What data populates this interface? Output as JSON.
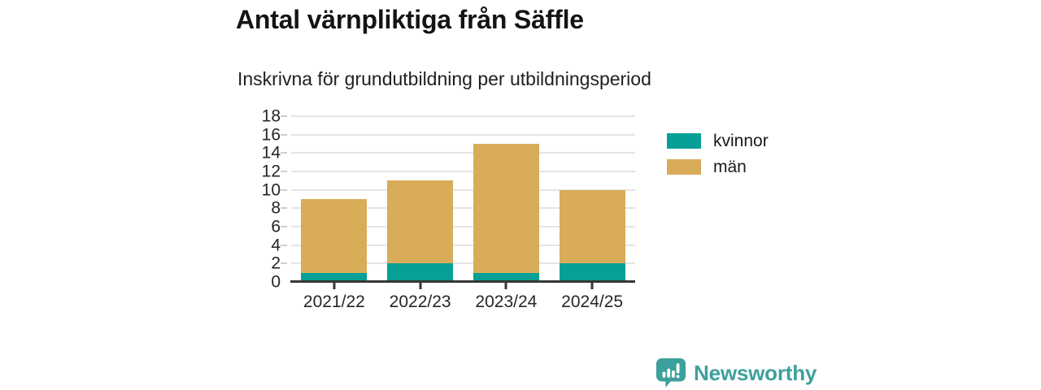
{
  "page": {
    "title": "Antal värnpliktiga från Säffle",
    "subtitle": "Inskrivna för grundutbildning per utbildningsperiod"
  },
  "chart_data": {
    "type": "bar",
    "stacked": true,
    "title": "Antal värnpliktiga från Säffle",
    "subtitle": "Inskrivna för grundutbildning per utbildningsperiod",
    "categories": [
      "2021/22",
      "2022/23",
      "2023/24",
      "2024/25"
    ],
    "series": [
      {
        "name": "kvinnor",
        "color": "#07a096",
        "values": [
          1,
          2,
          1,
          2
        ]
      },
      {
        "name": "män",
        "color": "#d9ac5a",
        "values": [
          8,
          9,
          14,
          8
        ]
      }
    ],
    "stack_totals": [
      9,
      11,
      15,
      10
    ],
    "ylim": [
      0,
      18
    ],
    "ytick_step": 2,
    "ytick_labels": [
      "0",
      "2",
      "4",
      "6",
      "8",
      "10",
      "12",
      "14",
      "16",
      "18"
    ],
    "grid": "horizontal",
    "legend_position": "right",
    "colors": {
      "gridline": "#e4e4e4",
      "axis": "#363636",
      "label_text": "#262626"
    }
  },
  "branding": {
    "name": "Newsworthy",
    "color": "#3da09c",
    "icon": "newsworthy-chart-bubble-icon"
  }
}
